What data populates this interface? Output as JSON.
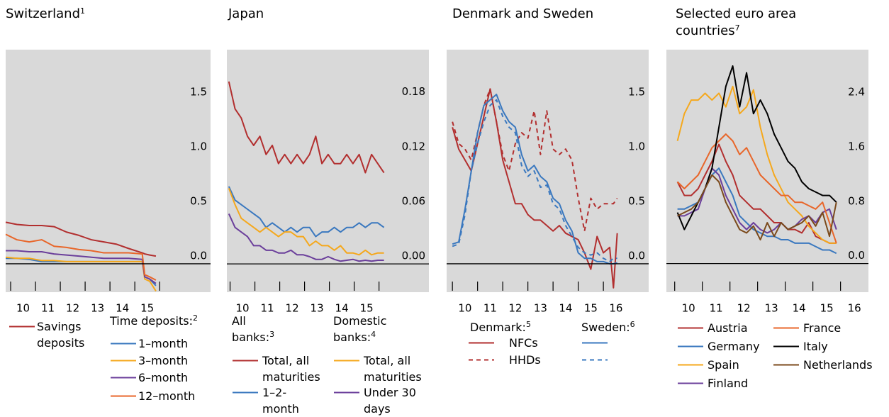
{
  "chart_data": [
    {
      "type": "line",
      "title": "Switzerland",
      "title_note": "1",
      "x": [
        2009.8,
        2010.25,
        2010.75,
        2011.25,
        2011.75,
        2012.25,
        2012.75,
        2013.25,
        2013.75,
        2014.25,
        2014.75,
        2015.3,
        2015.4,
        2015.6,
        2015.85
      ],
      "xlim": [
        2009.8,
        2018.05
      ],
      "xticks": [
        {
          "value": 2010.5,
          "label": "10"
        },
        {
          "value": 2011.5,
          "label": "11"
        },
        {
          "value": 2012.5,
          "label": "12"
        },
        {
          "value": 2013.5,
          "label": "13"
        },
        {
          "value": 2014.5,
          "label": "14"
        },
        {
          "value": 2015.5,
          "label": "15"
        }
      ],
      "xminorticks": [
        2010,
        2011,
        2012,
        2013,
        2014,
        2015,
        2016
      ],
      "ylim": [
        -0.26,
        1.96
      ],
      "yticks": [
        {
          "value": 0,
          "label": "0.0"
        },
        0.5,
        {
          "value": 1,
          "label": "1.0"
        },
        1.5
      ],
      "legend_groups": [
        {
          "title": "Time deposits:",
          "note": "2"
        }
      ],
      "series": [
        {
          "name": "Savings deposits",
          "color": "#b22f2f",
          "values": [
            0.38,
            0.36,
            0.35,
            0.35,
            0.34,
            0.29,
            0.26,
            0.22,
            0.2,
            0.18,
            0.14,
            0.1,
            0.09,
            0.08,
            0.07
          ]
        },
        {
          "name": "1–month",
          "color": "#3a78bf",
          "values": [
            0.05,
            0.05,
            0.04,
            0.02,
            0.02,
            0.02,
            0.02,
            0.02,
            0.02,
            0.02,
            0.02,
            0.02,
            -0.12,
            -0.14,
            -0.2
          ]
        },
        {
          "name": "3–month",
          "color": "#f5a81c",
          "values": [
            0.06,
            0.05,
            0.05,
            0.03,
            0.03,
            0.02,
            0.02,
            0.02,
            0.02,
            0.02,
            0.02,
            0.02,
            -0.14,
            -0.16,
            -0.25
          ]
        },
        {
          "name": "6–month",
          "color": "#6b3f9b",
          "values": [
            0.12,
            0.12,
            0.11,
            0.11,
            0.09,
            0.08,
            0.07,
            0.06,
            0.05,
            0.05,
            0.05,
            0.04,
            -0.12,
            -0.14,
            -0.18
          ]
        },
        {
          "name": "12–month",
          "color": "#e8662a",
          "values": [
            0.27,
            0.22,
            0.2,
            0.22,
            0.16,
            0.15,
            0.13,
            0.12,
            0.1,
            0.1,
            0.1,
            0.09,
            -0.1,
            -0.12,
            -0.15
          ]
        }
      ]
    },
    {
      "type": "line",
      "title": "Japan",
      "x": [
        2009.95,
        2010.2,
        2010.45,
        2010.7,
        2010.95,
        2011.2,
        2011.45,
        2011.7,
        2011.95,
        2012.2,
        2012.45,
        2012.7,
        2012.95,
        2013.2,
        2013.45,
        2013.7,
        2013.95,
        2014.2,
        2014.45,
        2014.7,
        2014.95,
        2015.2,
        2015.45,
        2015.7,
        2015.95,
        2016.2
      ],
      "xlim": [
        2009.87,
        2018.01
      ],
      "xticks": [
        {
          "value": 2010.5,
          "label": "10"
        },
        {
          "value": 2011.5,
          "label": "11"
        },
        {
          "value": 2012.5,
          "label": "12"
        },
        {
          "value": 2013.5,
          "label": "13"
        },
        {
          "value": 2014.5,
          "label": "14"
        },
        {
          "value": 2015.5,
          "label": "15"
        }
      ],
      "xminorticks": [
        2010,
        2011,
        2012,
        2013,
        2014,
        2015,
        2016
      ],
      "ylim": [
        -0.031,
        0.235
      ],
      "yticks": [
        {
          "value": 0,
          "label": "0.00"
        },
        {
          "value": 0.06,
          "label": "0.06"
        },
        {
          "value": 0.12,
          "label": "0.12"
        },
        {
          "value": 0.18,
          "label": "0.18"
        }
      ],
      "legend_groups": [
        {
          "title": "All banks:",
          "note": "3"
        },
        {
          "title": "Domestic banks:",
          "note": "4"
        }
      ],
      "series": [
        {
          "name": "Total, all maturities",
          "color": "#b22f2f",
          "values": [
            0.2,
            0.17,
            0.16,
            0.14,
            0.13,
            0.14,
            0.12,
            0.13,
            0.11,
            0.12,
            0.11,
            0.12,
            0.11,
            0.12,
            0.14,
            0.11,
            0.12,
            0.11,
            0.11,
            0.12,
            0.11,
            0.12,
            0.1,
            0.12,
            0.11,
            0.1
          ]
        },
        {
          "name": "1–2-month",
          "color": "#3a78bf",
          "values": [
            0.085,
            0.07,
            0.065,
            0.06,
            0.055,
            0.05,
            0.04,
            0.045,
            0.04,
            0.035,
            0.04,
            0.035,
            0.04,
            0.04,
            0.03,
            0.035,
            0.035,
            0.04,
            0.035,
            0.04,
            0.04,
            0.045,
            0.04,
            0.045,
            0.045,
            0.04
          ]
        },
        {
          "name": "Total, all maturities",
          "color": "#f5a81c",
          "values": [
            0.083,
            0.065,
            0.05,
            0.045,
            0.04,
            0.035,
            0.04,
            0.035,
            0.03,
            0.035,
            0.035,
            0.03,
            0.03,
            0.02,
            0.025,
            0.02,
            0.02,
            0.015,
            0.02,
            0.012,
            0.012,
            0.01,
            0.015,
            0.01,
            0.012,
            0.012
          ]
        },
        {
          "name": "Under 30 days",
          "color": "#6b3f9b",
          "values": [
            0.055,
            0.04,
            0.035,
            0.03,
            0.02,
            0.02,
            0.015,
            0.015,
            0.012,
            0.012,
            0.015,
            0.01,
            0.01,
            0.008,
            0.005,
            0.005,
            0.008,
            0.005,
            0.003,
            0.004,
            0.005,
            0.003,
            0.004,
            0.003,
            0.004,
            0.004
          ]
        }
      ]
    },
    {
      "type": "line",
      "title": "Denmark and Sweden",
      "x": [
        2010,
        2010.25,
        2010.5,
        2010.75,
        2011,
        2011.25,
        2011.5,
        2011.75,
        2012,
        2012.25,
        2012.5,
        2012.75,
        2013,
        2013.25,
        2013.5,
        2013.75,
        2014,
        2014.25,
        2014.5,
        2014.75,
        2015,
        2015.25,
        2015.5,
        2015.75,
        2016,
        2016.25,
        2016.4,
        2016.55
      ],
      "xlim": [
        2009.77,
        2017.8
      ],
      "xticks": [
        {
          "value": 2010.5,
          "label": "10"
        },
        {
          "value": 2011.5,
          "label": "11"
        },
        {
          "value": 2012.5,
          "label": "12"
        },
        {
          "value": 2013.5,
          "label": "13"
        },
        {
          "value": 2014.5,
          "label": "14"
        },
        {
          "value": 2015.5,
          "label": "15"
        },
        {
          "value": 2016.5,
          "label": "16"
        }
      ],
      "xminorticks": [
        2010,
        2011,
        2012,
        2013,
        2014,
        2015,
        2016
      ],
      "ylim": [
        -0.26,
        1.96
      ],
      "yticks": [
        {
          "value": 0,
          "label": "0.0"
        },
        0.5,
        {
          "value": 1,
          "label": "1.0"
        },
        1.5
      ],
      "legend_groups": [
        {
          "title": "Denmark:",
          "note": "5"
        },
        {
          "title": "Sweden:",
          "note": "6"
        }
      ],
      "series": [
        {
          "name": "NFCs",
          "color": "#b22f2f",
          "values": [
            1.25,
            1.05,
            0.95,
            0.85,
            1.1,
            1.35,
            1.6,
            1.3,
            0.95,
            0.75,
            0.55,
            0.55,
            0.45,
            0.4,
            0.4,
            0.35,
            0.3,
            0.35,
            0.28,
            0.25,
            0.22,
            0.1,
            -0.05,
            0.25,
            0.1,
            0.15,
            -0.22,
            0.28
          ]
        },
        {
          "name": "HHDs",
          "color": "#b22f2f",
          "dash": true,
          "values": [
            1.3,
            1.1,
            1.05,
            0.95,
            1.2,
            1.45,
            1.6,
            1.3,
            1.0,
            0.85,
            1.1,
            1.2,
            1.15,
            1.4,
            1.0,
            1.4,
            1.05,
            1.0,
            1.05,
            0.95,
            0.6,
            0.3,
            0.6,
            0.5,
            0.55,
            0.55,
            0.55,
            0.6
          ]
        },
        {
          "color": "#3a78bf",
          "values": [
            0.18,
            0.2,
            0.5,
            0.85,
            1.2,
            1.45,
            1.5,
            1.55,
            1.4,
            1.3,
            1.25,
            1.0,
            0.85,
            0.9,
            0.8,
            0.75,
            0.6,
            0.55,
            0.4,
            0.3,
            0.1,
            0.05,
            0.05,
            0.02,
            0.02,
            0.0,
            0.0,
            0.01
          ]
        },
        {
          "color": "#3a78bf",
          "dash": true,
          "values": [
            0.16,
            0.18,
            0.45,
            0.85,
            1.1,
            1.3,
            1.45,
            1.5,
            1.35,
            1.25,
            1.2,
            0.9,
            0.8,
            0.85,
            0.7,
            0.72,
            0.55,
            0.5,
            0.35,
            0.25,
            0.15,
            0.1,
            0.08,
            0.1,
            0.05,
            0.02,
            0.05,
            0.05
          ]
        }
      ]
    },
    {
      "type": "line",
      "title": "Selected euro area countries",
      "title_note": "7",
      "x": [
        2010.1,
        2010.35,
        2010.6,
        2010.85,
        2011.1,
        2011.35,
        2011.6,
        2011.85,
        2012.1,
        2012.35,
        2012.6,
        2012.85,
        2013.1,
        2013.35,
        2013.6,
        2013.85,
        2014.1,
        2014.35,
        2014.6,
        2014.85,
        2015.1,
        2015.35,
        2015.6,
        2015.85
      ],
      "xlim": [
        2009.7,
        2017.01
      ],
      "xticks": [
        {
          "value": 2010.5,
          "label": "10"
        },
        {
          "value": 2011.5,
          "label": "11"
        },
        {
          "value": 2012.5,
          "label": "12"
        },
        {
          "value": 2013.5,
          "label": "13"
        },
        {
          "value": 2014.5,
          "label": "14"
        },
        {
          "value": 2015.5,
          "label": "15"
        },
        {
          "value": 2016.5,
          "label": "16"
        }
      ],
      "xminorticks": [
        2010,
        2011,
        2012,
        2013,
        2014,
        2015,
        2016
      ],
      "ylim": [
        -0.42,
        3.14
      ],
      "yticks": [
        {
          "value": 0,
          "label": "0.0"
        },
        0.8,
        1.6,
        2.4
      ],
      "series": [
        {
          "name": "Austria",
          "color": "#b22f2f",
          "values": [
            1.2,
            1.0,
            1.0,
            1.1,
            1.3,
            1.5,
            1.75,
            1.5,
            1.3,
            1.0,
            0.9,
            0.8,
            0.8,
            0.7,
            0.6,
            0.6,
            0.5,
            0.5,
            0.45,
            0.6,
            0.4,
            0.35,
            0.3,
            0.3
          ]
        },
        {
          "name": "Germany",
          "color": "#3a78bf",
          "values": [
            0.8,
            0.8,
            0.85,
            0.9,
            1.1,
            1.3,
            1.4,
            1.2,
            1.0,
            0.7,
            0.6,
            0.5,
            0.45,
            0.4,
            0.4,
            0.35,
            0.35,
            0.3,
            0.3,
            0.3,
            0.25,
            0.2,
            0.2,
            0.15
          ]
        },
        {
          "name": "Spain",
          "color": "#f5a81c",
          "values": [
            1.8,
            2.2,
            2.4,
            2.4,
            2.5,
            2.4,
            2.5,
            2.3,
            2.6,
            2.2,
            2.3,
            2.55,
            2.0,
            1.6,
            1.3,
            1.1,
            0.9,
            0.8,
            0.7,
            0.55,
            0.45,
            0.35,
            0.3,
            0.3
          ]
        },
        {
          "name": "Finland",
          "color": "#6b3f9b",
          "values": [
            0.7,
            0.7,
            0.75,
            0.8,
            1.1,
            1.4,
            1.3,
            1.0,
            0.8,
            0.6,
            0.5,
            0.6,
            0.5,
            0.45,
            0.5,
            0.6,
            0.5,
            0.55,
            0.65,
            0.7,
            0.6,
            0.75,
            0.8,
            0.5
          ]
        },
        {
          "name": "France",
          "color": "#e8662a",
          "values": [
            1.2,
            1.1,
            1.2,
            1.3,
            1.5,
            1.7,
            1.8,
            1.9,
            1.8,
            1.6,
            1.7,
            1.5,
            1.3,
            1.2,
            1.1,
            1.0,
            1.0,
            0.9,
            0.9,
            0.85,
            0.8,
            0.9,
            0.6,
            0.3
          ]
        },
        {
          "name": "Italy",
          "color": "#000000",
          "values": [
            0.75,
            0.5,
            0.7,
            0.9,
            1.1,
            1.4,
            2.0,
            2.6,
            2.9,
            2.3,
            2.8,
            2.2,
            2.4,
            2.2,
            1.9,
            1.7,
            1.5,
            1.4,
            1.2,
            1.1,
            1.05,
            1.0,
            1.0,
            0.9
          ]
        },
        {
          "name": "Netherlands",
          "color": "#7b4a1c",
          "values": [
            0.7,
            0.75,
            0.8,
            0.9,
            1.1,
            1.3,
            1.2,
            0.9,
            0.7,
            0.5,
            0.45,
            0.55,
            0.35,
            0.6,
            0.4,
            0.6,
            0.5,
            0.55,
            0.6,
            0.7,
            0.55,
            0.75,
            0.4,
            0.9
          ]
        }
      ]
    }
  ]
}
